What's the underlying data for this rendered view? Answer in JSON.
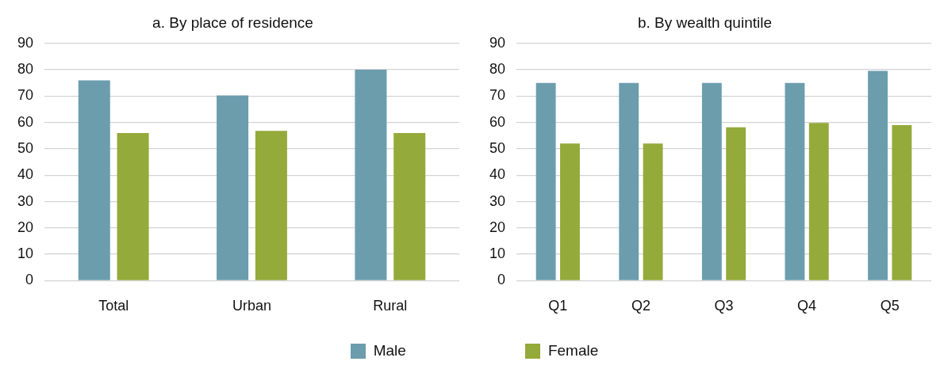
{
  "chart_data": [
    {
      "type": "bar",
      "title": "a. By place of residence",
      "categories": [
        "Total",
        "Urban",
        "Rural"
      ],
      "series": [
        {
          "name": "Male",
          "color": "#6b9dad",
          "values": [
            76,
            70.3,
            80
          ]
        },
        {
          "name": "Female",
          "color": "#94aa3a",
          "values": [
            56,
            56.8,
            56
          ]
        }
      ],
      "ylim": [
        0,
        90
      ],
      "yticks": [
        0,
        10,
        20,
        30,
        40,
        50,
        60,
        70,
        80,
        90
      ],
      "grid": "y",
      "legend": "bottom"
    },
    {
      "type": "bar",
      "title": "b. By wealth quintile",
      "categories": [
        "Q1",
        "Q2",
        "Q3",
        "Q4",
        "Q5"
      ],
      "series": [
        {
          "color": "#6b9dad",
          "values": [
            75,
            75,
            75,
            75,
            79.6
          ]
        },
        {
          "color": "#94aa3a",
          "values": [
            52,
            52,
            58.2,
            59.8,
            59
          ]
        }
      ],
      "ylim": [
        0,
        90
      ],
      "yticks": [
        0,
        10,
        20,
        30,
        40,
        50,
        60,
        70,
        80,
        90
      ],
      "grid": "y"
    }
  ]
}
